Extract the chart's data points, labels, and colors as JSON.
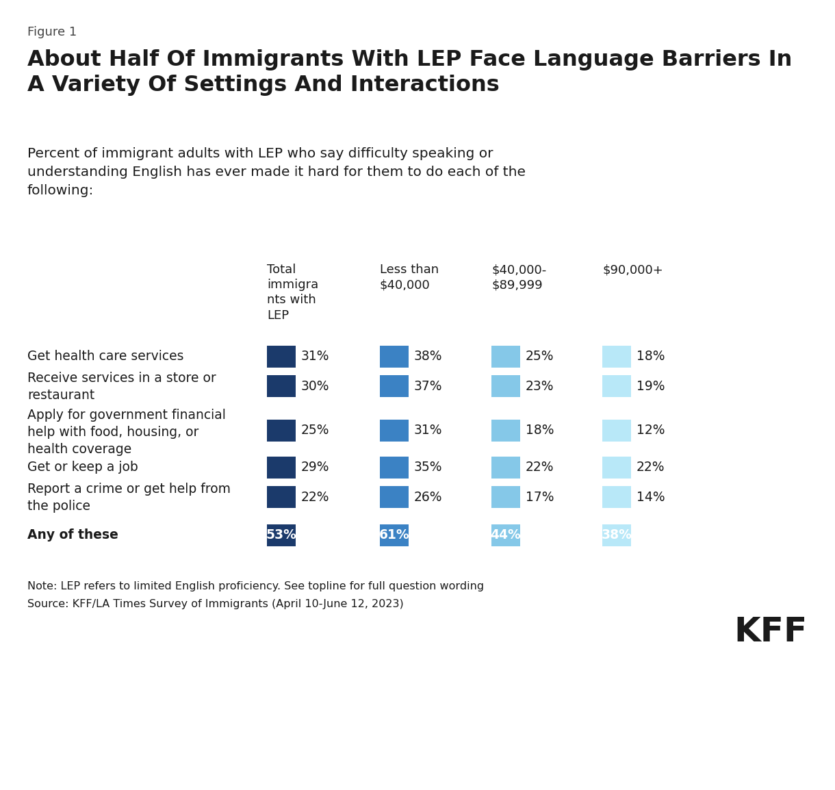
{
  "figure_label": "Figure 1",
  "title": "About Half Of Immigrants With LEP Face Language Barriers In\nA Variety Of Settings And Interactions",
  "subtitle": "Percent of immigrant adults with LEP who say difficulty speaking or\nunderstanding English has ever made it hard for them to do each of the\nfollowing:",
  "col_headers": [
    "Total\nimmigra\nnts with\nLEP",
    "Less than\n$40,000",
    "$40,000-\n$89,999",
    "$90,000+"
  ],
  "row_labels": [
    "Get health care services",
    "Receive services in a store or\nrestaurant",
    "Apply for government financial\nhelp with food, housing, or\nhealth coverage",
    "Get or keep a job",
    "Report a crime or get help from\nthe police",
    "Any of these"
  ],
  "row_bold": [
    false,
    false,
    false,
    false,
    false,
    true
  ],
  "row_line_counts": [
    1,
    2,
    3,
    1,
    2,
    1
  ],
  "values": [
    [
      31,
      38,
      25,
      18
    ],
    [
      30,
      37,
      23,
      19
    ],
    [
      25,
      31,
      18,
      12
    ],
    [
      29,
      35,
      22,
      22
    ],
    [
      22,
      26,
      17,
      14
    ],
    [
      53,
      61,
      44,
      38
    ]
  ],
  "colors": [
    "#1b3a6b",
    "#3b82c4",
    "#85c8e8",
    "#b8e8f8"
  ],
  "note_line1": "Note: LEP refers to limited English proficiency. See topline for full question wording",
  "note_line2": "Source: KFF/LA Times Survey of Immigrants (April 10-June 12, 2023)",
  "kff_logo": "KFF",
  "background_color": "#ffffff",
  "text_color": "#1a1a1a",
  "separator_color": "#cccccc"
}
